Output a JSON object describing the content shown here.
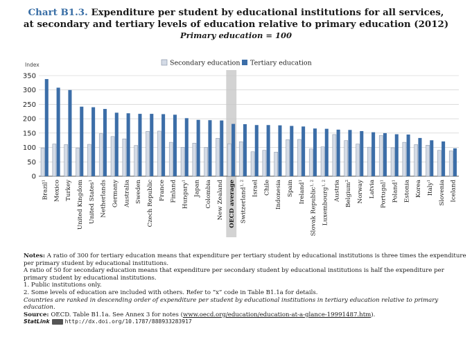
{
  "title": {
    "chart_number": "Chart B1.3.",
    "line1": "Expenditure per student by educational institutions for all services,",
    "line2": "at secondary and tertiary levels of education relative to primary education (2012)",
    "subtitle": "Primary education = 100"
  },
  "colors": {
    "secondary": "#d4dbe6",
    "tertiary": "#3c6ea8",
    "highlight": "#d3d3d3"
  },
  "chart_data": {
    "type": "bar",
    "ylabel": "Index",
    "ylim": [
      0,
      350
    ],
    "yticks": [
      0,
      50,
      100,
      150,
      200,
      250,
      300,
      350
    ],
    "grid": true,
    "legend_position": "top",
    "categories": [
      "Brazil",
      "Mexico",
      "Turkey",
      "United Kingdom",
      "United States",
      "Netherlands",
      "Germany",
      "Australia",
      "Sweden",
      "Czech Republic",
      "France",
      "Finland",
      "Hungary",
      "Japan",
      "Colombia",
      "New Zealand",
      "OECD average",
      "Switzerland",
      "Israel",
      "Chile",
      "Indonesia",
      "Spain",
      "Ireland",
      "Slovak Republic",
      "Luxembourg",
      "Austria",
      "Belgium",
      "Norway",
      "Latvia",
      "Portugal",
      "Poland",
      "Estonia",
      "Korea",
      "Italy",
      "Slovenia",
      "Iceland"
    ],
    "category_notes": [
      "1",
      "",
      "",
      "",
      "1",
      "",
      "",
      "",
      "",
      "",
      "",
      "",
      "1",
      "",
      "",
      "",
      "",
      "1, 2",
      "",
      "",
      "",
      "",
      "1",
      "1, 2",
      "1, 2",
      "",
      "2",
      "",
      "",
      "1",
      "1",
      "",
      "",
      "1",
      "",
      ""
    ],
    "highlight_category": "OECD average",
    "series": [
      {
        "name": "Secondary education",
        "values": [
          98,
          112,
          110,
          98,
          111,
          148,
          138,
          130,
          107,
          156,
          157,
          118,
          100,
          115,
          100,
          132,
          113,
          120,
          85,
          90,
          84,
          127,
          128,
          95,
          102,
          145,
          124,
          112,
          101,
          142,
          99,
          118,
          110,
          108,
          90,
          88
        ]
      },
      {
        "name": "Tertiary education",
        "values": [
          338,
          308,
          300,
          242,
          240,
          234,
          221,
          219,
          217,
          217,
          216,
          214,
          202,
          196,
          195,
          194,
          182,
          181,
          178,
          178,
          177,
          175,
          173,
          166,
          165,
          162,
          161,
          157,
          153,
          150,
          146,
          145,
          133,
          125,
          121,
          97
        ]
      }
    ]
  },
  "notes": {
    "heading": "Notes:",
    "line1": "A ratio of 300 for tertiary education means that expenditure per tertiary student by educational institutions is three times the expenditure per primary student by educational institutions.",
    "line2": "A ratio of 50 for secondary education means that expenditure per secondary student by educational institutions is half the expenditure per primary student by educational institutions.",
    "note1": "1. Public institutions only.",
    "note2": "2. Some levels of education are included with others. Refer to “x” code in Table B1.1a for details.",
    "ranking": "Countries are ranked in descending order of expenditure per student  by educational institutions in tertiary education relative to primary education.",
    "source_heading": "Source:",
    "source_text": "OECD. Table B1.1a. See Annex 3 for notes (",
    "source_url": "www.oecd.org/education/education-at-a-glance-19991487.htm",
    "source_end": ").",
    "statlink_label": "StatLink",
    "statlink_url": "http://dx.doi.org/10.1787/888933283917"
  }
}
